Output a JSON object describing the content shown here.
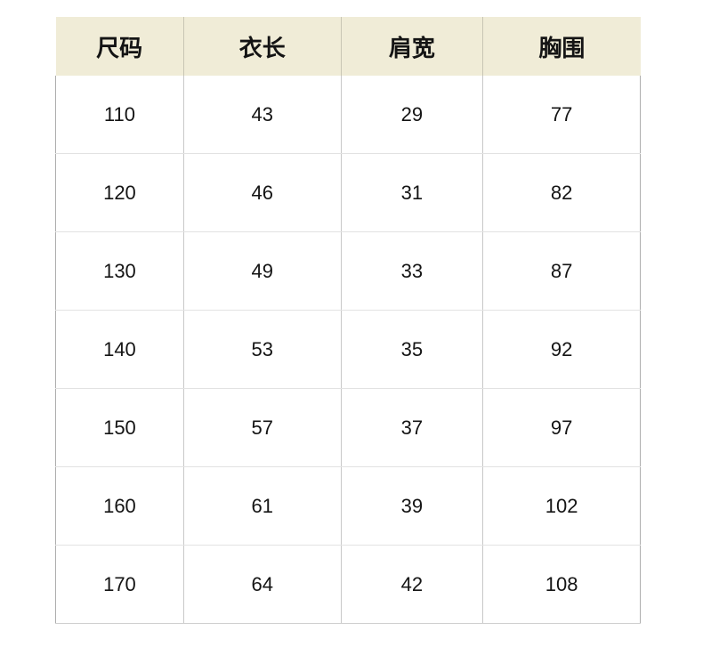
{
  "table": {
    "columns": [
      {
        "label": "尺码"
      },
      {
        "label": "衣长"
      },
      {
        "label": "肩宽"
      },
      {
        "label": "胸围"
      }
    ],
    "rows": [
      [
        "110",
        "43",
        "29",
        "77"
      ],
      [
        "120",
        "46",
        "31",
        "82"
      ],
      [
        "130",
        "49",
        "33",
        "87"
      ],
      [
        "140",
        "53",
        "35",
        "92"
      ],
      [
        "150",
        "57",
        "37",
        "97"
      ],
      [
        "160",
        "61",
        "39",
        "102"
      ],
      [
        "170",
        "64",
        "42",
        "108"
      ]
    ]
  },
  "colors": {
    "header_bg": "#f0ecd7",
    "header_separator": "#c8c5b4",
    "vertical_border": "#c8c8c8",
    "horizontal_border": "#e2e2e2",
    "outer_border": "#aeaeae",
    "bottom_border": "#cfcfcf",
    "text": "#141414",
    "page_bg": "#ffffff"
  }
}
